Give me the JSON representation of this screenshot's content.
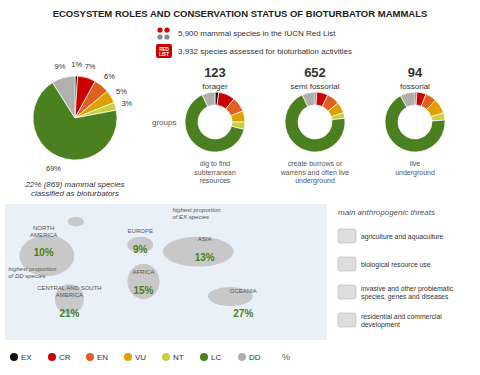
{
  "chart_data": [
    {
      "type": "pie",
      "title": "ECOSYSTEM ROLES AND CONSERVATION STATUS OF BIOTURBATOR MAMMALS",
      "annotations": [
        "5,900 mammal species in the IUCN Red List",
        "3,932 species assessed for bioturbation activities",
        "RED\nLIST",
        "22% (869) mammal species\nclassified as bioturbators",
        "groups",
        "%"
      ],
      "categories": [
        "EX",
        "CR",
        "EN",
        "VU",
        "NT",
        "LC",
        "DD"
      ],
      "values": [
        1,
        7,
        6,
        5,
        3,
        69,
        9
      ],
      "value_labels": [
        "1%",
        "7%",
        "6%",
        "5%",
        "3%",
        "69%",
        "9%"
      ],
      "colors": [
        "#111111",
        "#cc0000",
        "#e06020",
        "#e0a000",
        "#c8d040",
        "#4a8020",
        "#b0b0b0"
      ],
      "data_labels": true,
      "legend": "bottom"
    },
    {
      "type": "donut",
      "title": "forager",
      "subtitle": "dig to find\nsubterranean\nresources",
      "count": 123,
      "categories": [
        "EX",
        "CR",
        "EN",
        "VU",
        "NT",
        "LC",
        "DD"
      ],
      "values": [
        2,
        9,
        8,
        6,
        4,
        64,
        7
      ],
      "colors": [
        "#111111",
        "#cc0000",
        "#e06020",
        "#e0a000",
        "#c8d040",
        "#4a8020",
        "#b0b0b0"
      ]
    },
    {
      "type": "donut",
      "title": "semi fossorial",
      "subtitle": "create burrows or\nwarrens and often live\nunderground",
      "count": 652,
      "categories": [
        "EX",
        "CR",
        "EN",
        "VU",
        "NT",
        "LC",
        "DD"
      ],
      "values": [
        1,
        6,
        7,
        6,
        3,
        70,
        7
      ],
      "colors": [
        "#111111",
        "#cc0000",
        "#e06020",
        "#e0a000",
        "#c8d040",
        "#4a8020",
        "#b0b0b0"
      ]
    },
    {
      "type": "donut",
      "title": "fossorial",
      "subtitle": "live\nunderground",
      "count": 94,
      "categories": [
        "EX",
        "CR",
        "EN",
        "VU",
        "NT",
        "LC",
        "DD"
      ],
      "values": [
        1,
        5,
        6,
        8,
        4,
        68,
        8
      ],
      "colors": [
        "#111111",
        "#cc0000",
        "#e06020",
        "#e0a000",
        "#c8d040",
        "#4a8020",
        "#b0b0b0"
      ]
    },
    {
      "type": "map",
      "categories": [
        "NORTH\nAMERICA",
        "EUROPE",
        "CENTRAL AND SOUTH\nAMERICA",
        "AFRICA",
        "ASIA",
        "OCEANIA"
      ],
      "values": [
        10,
        9,
        21,
        15,
        13,
        27
      ],
      "value_labels": [
        "10%",
        "9%",
        "21%",
        "15%",
        "13%",
        "27%"
      ],
      "color": "#4a8020",
      "annotations": [
        "highest proportion\nof DD species",
        "highest proportion\nof EX species"
      ]
    },
    {
      "type": "list",
      "title": "main anthropogenic threats",
      "categories": [
        "agriculture and aquaculture",
        "biological resource use",
        "invasive and other problematic\nspecies, genes and diseases",
        "residential and commercial\ndevelopment"
      ]
    }
  ]
}
